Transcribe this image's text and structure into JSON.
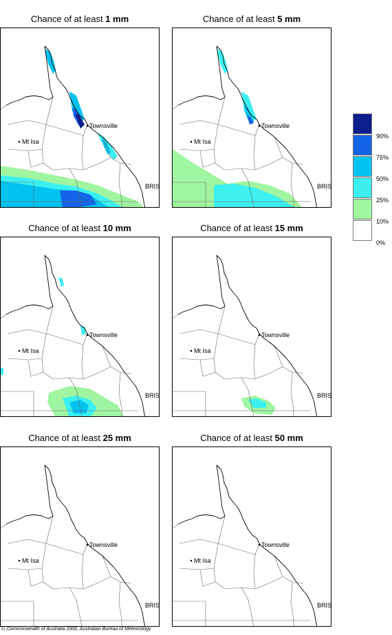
{
  "panels": [
    {
      "prefix": "Chance of at least ",
      "amount": "1 mm"
    },
    {
      "prefix": "Chance of at least ",
      "amount": "5 mm"
    },
    {
      "prefix": "Chance of at least ",
      "amount": "10 mm"
    },
    {
      "prefix": "Chance of at least ",
      "amount": "15 mm"
    },
    {
      "prefix": "Chance of at least ",
      "amount": "25 mm"
    },
    {
      "prefix": "Chance of at least ",
      "amount": "50 mm"
    }
  ],
  "places": {
    "townsville": "Townsville",
    "mt_isa": "Mt Isa",
    "bris": "BRIS"
  },
  "legend": {
    "labels": [
      "90%",
      "75%",
      "50%",
      "25%",
      "10%",
      "0%"
    ],
    "colors": [
      "#0a1e8c",
      "#1464e6",
      "#00c3f0",
      "#3cf0f0",
      "#a0f5a0",
      "#ffffff"
    ]
  },
  "copyright": "© Commonwealth of Australia 2006, Australian Bureau of Meteorology"
}
